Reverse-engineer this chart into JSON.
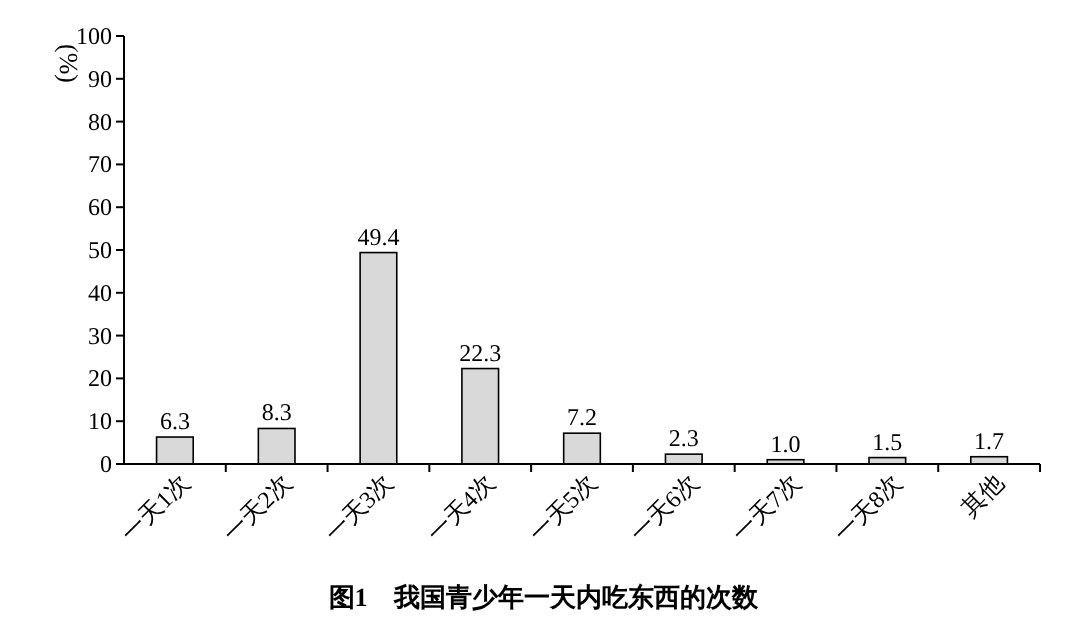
{
  "chart_data": {
    "type": "bar",
    "title": "图1　我国青少年一天内吃东西的次数",
    "ylabel": "(%)",
    "categories": [
      "一天1次",
      "一天2次",
      "一天3次",
      "一天4次",
      "一天5次",
      "一天6次",
      "一天7次",
      "一天8次",
      "其他"
    ],
    "values": [
      6.3,
      8.3,
      49.4,
      22.3,
      7.2,
      2.3,
      1.0,
      1.5,
      1.7
    ],
    "value_labels": [
      "6.3",
      "8.3",
      "49.4",
      "22.3",
      "7.2",
      "2.3",
      "1.0",
      "1.5",
      "1.7"
    ],
    "color": "#d9d9d9",
    "ylim": [
      0,
      100
    ],
    "yticks": [
      0,
      10,
      20,
      30,
      40,
      50,
      60,
      70,
      80,
      90,
      100
    ],
    "grid": false
  }
}
